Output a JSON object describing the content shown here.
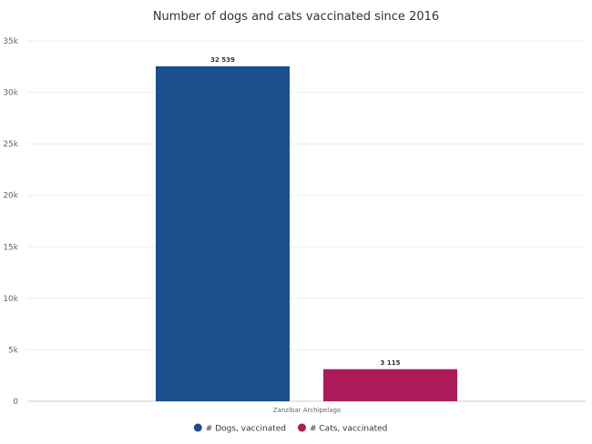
{
  "chart_data": {
    "type": "bar",
    "title": "Number of dogs and cats vaccinated since 2016",
    "categories": [
      "Zanzibar Archipelago"
    ],
    "series": [
      {
        "name": "# Dogs, vaccinated",
        "values": [
          32539
        ],
        "color": "#1a4e8c",
        "label": "32 539"
      },
      {
        "name": "# Cats, vaccinated",
        "values": [
          3115
        ],
        "color": "#ad1a5a",
        "label": "3 115"
      }
    ],
    "ylim": [
      0,
      35000
    ],
    "yticks": [
      {
        "value": 0,
        "label": "0"
      },
      {
        "value": 5000,
        "label": "5k"
      },
      {
        "value": 10000,
        "label": "10k"
      },
      {
        "value": 15000,
        "label": "15k"
      },
      {
        "value": 20000,
        "label": "20k"
      },
      {
        "value": 25000,
        "label": "25k"
      },
      {
        "value": 30000,
        "label": "30k"
      },
      {
        "value": 35000,
        "label": "35k"
      }
    ],
    "grid": true,
    "legend_position": "bottom-center"
  }
}
